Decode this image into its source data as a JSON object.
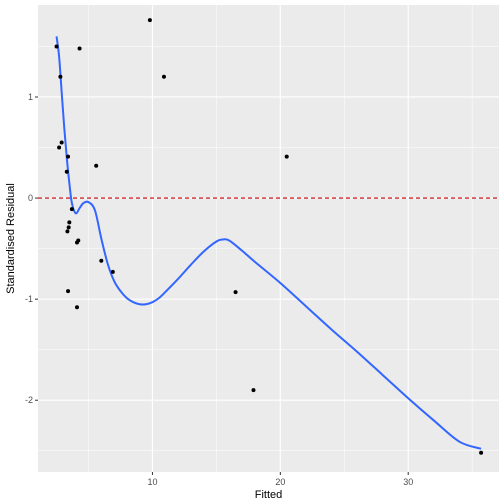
{
  "chart_data": {
    "type": "scatter",
    "xlabel": "Fitted",
    "ylabel": "Standardised Residual",
    "xlim": [
      1.05,
      37.1
    ],
    "ylim": [
      -2.71,
      1.91
    ],
    "x_ticks": [
      10,
      20,
      30
    ],
    "x_minor_ticks": [
      5,
      15,
      25,
      35
    ],
    "y_ticks": [
      -2,
      -1,
      0,
      1
    ],
    "y_minor_ticks": [
      -2.5,
      -1.5,
      -0.5,
      0.5,
      1.5
    ],
    "grid": true,
    "panel_color": "#ebebeb",
    "grid_color": "#ffffff",
    "point_color": "#000000",
    "points": [
      {
        "x": 2.5,
        "y": 1.5
      },
      {
        "x": 2.7,
        "y": 0.5
      },
      {
        "x": 2.8,
        "y": 1.2
      },
      {
        "x": 2.9,
        "y": 0.55
      },
      {
        "x": 3.3,
        "y": 0.26
      },
      {
        "x": 3.4,
        "y": 0.41
      },
      {
        "x": 3.35,
        "y": -0.33
      },
      {
        "x": 3.45,
        "y": -0.29
      },
      {
        "x": 3.5,
        "y": -0.24
      },
      {
        "x": 3.4,
        "y": -0.92
      },
      {
        "x": 3.7,
        "y": -0.11
      },
      {
        "x": 4.1,
        "y": -0.44
      },
      {
        "x": 4.2,
        "y": -0.42
      },
      {
        "x": 4.1,
        "y": -1.08
      },
      {
        "x": 4.3,
        "y": 1.48
      },
      {
        "x": 5.6,
        "y": 0.32
      },
      {
        "x": 6.0,
        "y": -0.62
      },
      {
        "x": 6.9,
        "y": -0.73
      },
      {
        "x": 9.8,
        "y": 1.76
      },
      {
        "x": 10.9,
        "y": 1.2
      },
      {
        "x": 16.5,
        "y": -0.93
      },
      {
        "x": 17.9,
        "y": -1.9
      },
      {
        "x": 20.5,
        "y": 0.41
      },
      {
        "x": 35.7,
        "y": -2.52
      }
    ],
    "smooth_line": {
      "color": "#3366ff",
      "x": [
        2.5,
        2.7,
        2.9,
        3.1,
        3.3,
        3.5,
        3.7,
        4.0,
        4.3,
        4.6,
        5.0,
        5.5,
        6.0,
        6.5,
        7.0,
        7.5,
        8.0,
        8.5,
        9.0,
        9.5,
        10.0,
        10.5,
        11.0,
        12.0,
        13.0,
        14.0,
        15.0,
        15.5,
        16.0,
        17.0,
        18.0,
        20.0,
        22.0,
        24.0,
        26.0,
        28.0,
        30.0,
        32.0,
        34.0,
        35.7
      ],
      "y": [
        1.6,
        1.4,
        1.05,
        0.7,
        0.4,
        0.15,
        -0.05,
        -0.15,
        -0.1,
        -0.05,
        -0.04,
        -0.12,
        -0.4,
        -0.65,
        -0.82,
        -0.92,
        -0.99,
        -1.03,
        -1.05,
        -1.05,
        -1.03,
        -0.99,
        -0.93,
        -0.8,
        -0.66,
        -0.53,
        -0.43,
        -0.41,
        -0.42,
        -0.52,
        -0.63,
        -0.84,
        -1.07,
        -1.3,
        -1.52,
        -1.75,
        -1.98,
        -2.2,
        -2.41,
        -2.48
      ]
    },
    "reference_line": {
      "y": 0,
      "color": "#cc0000",
      "style": "dashed"
    }
  }
}
